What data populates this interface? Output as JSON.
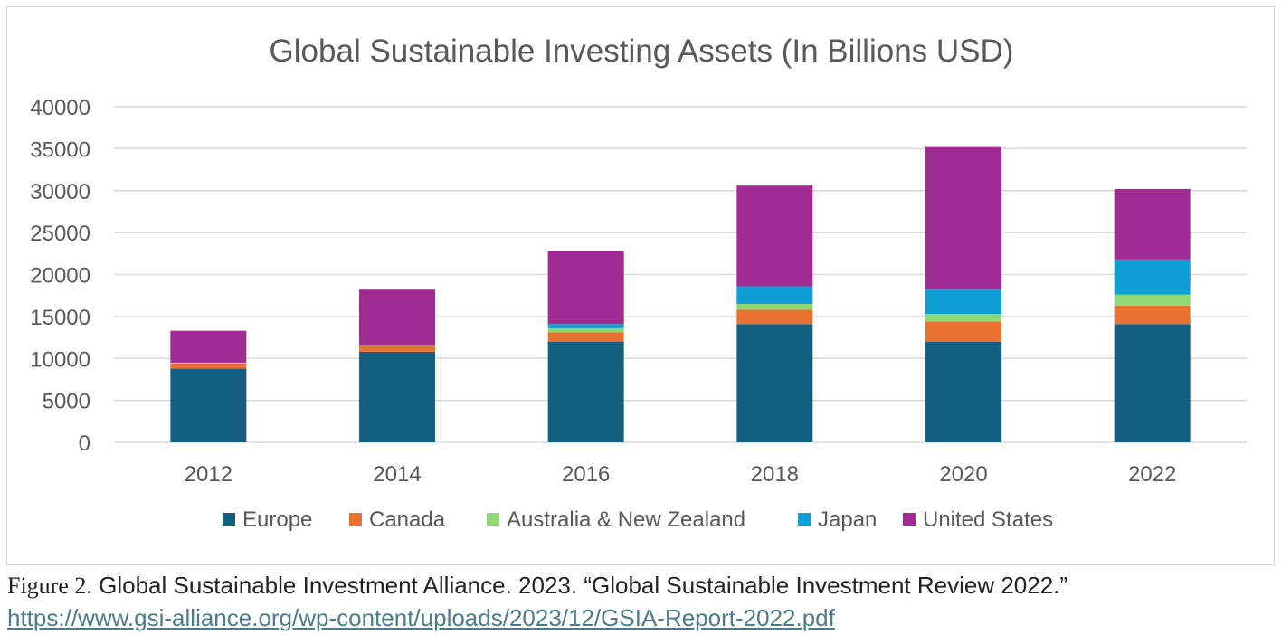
{
  "chart_data": {
    "type": "bar",
    "stacked": true,
    "title": "Global Sustainable Investing Assets (In Billions USD)",
    "xlabel": "",
    "ylabel": "",
    "categories": [
      "2012",
      "2014",
      "2016",
      "2018",
      "2020",
      "2022"
    ],
    "ylim": [
      0,
      40000
    ],
    "yticks": [
      0,
      5000,
      10000,
      15000,
      20000,
      25000,
      30000,
      35000,
      40000
    ],
    "grid": true,
    "legend_position": "bottom",
    "series": [
      {
        "name": "Europe",
        "color": "#156082",
        "values": [
          8800,
          10800,
          12000,
          14100,
          12000,
          14100
        ]
      },
      {
        "name": "Canada",
        "color": "#e97132",
        "values": [
          600,
          700,
          1100,
          1700,
          2400,
          2200
        ]
      },
      {
        "name": "Australia & New Zealand",
        "color": "#8ed973",
        "values": [
          100,
          100,
          500,
          700,
          900,
          1300
        ]
      },
      {
        "name": "Japan",
        "color": "#0f9ed5",
        "values": [
          0,
          0,
          500,
          2100,
          2900,
          4200
        ]
      },
      {
        "name": "United States",
        "color": "#a02b93",
        "values": [
          3800,
          6600,
          8700,
          12000,
          17100,
          8400
        ]
      }
    ]
  },
  "caption": {
    "figure_label": "Figure 2.",
    "text": " Global Sustainable Investment Alliance. 2023. “Global Sustainable Investment Review 2022.”",
    "link": "https://www.gsi-alliance.org/wp-content/uploads/2023/12/GSIA-Report-2022.pdf"
  }
}
